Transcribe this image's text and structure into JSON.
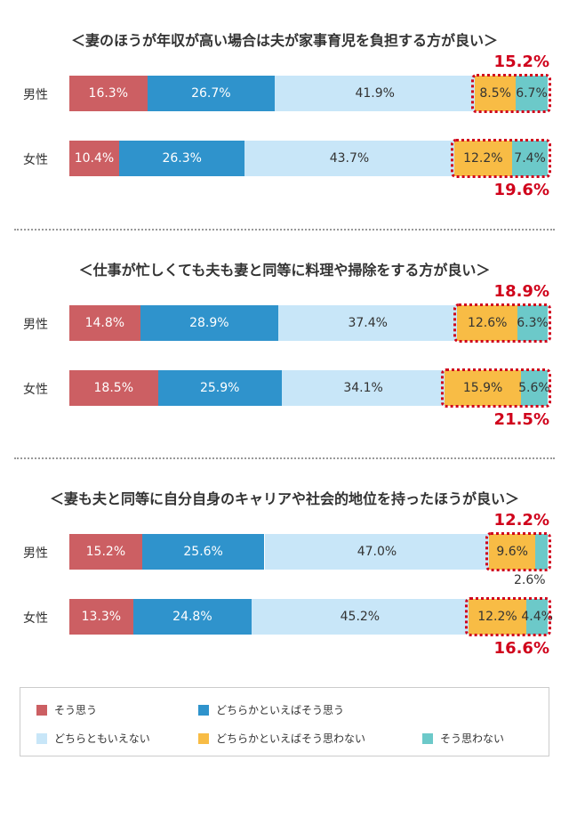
{
  "colors": {
    "agree": "#cc5f63",
    "somewhat_agree": "#2f93cc",
    "neutral": "#c8e6f8",
    "somewhat_disagree": "#f8bc45",
    "disagree": "#6cc9c9",
    "highlight": "#d0021b"
  },
  "legend": [
    {
      "key": "agree",
      "label": "そう思う"
    },
    {
      "key": "somewhat_agree",
      "label": "どちらかといえばそう思う"
    },
    {
      "key": "neutral",
      "label": "どちらともいえない"
    },
    {
      "key": "somewhat_disagree",
      "label": "どちらかといえばそう思わない"
    },
    {
      "key": "disagree",
      "label": "そう思わない"
    }
  ],
  "chart_data": [
    {
      "type": "bar",
      "orientation": "horizontal",
      "stacked": true,
      "title": "＜妻のほうが年収が高い場合は夫が家事育児を負担する方が良い＞",
      "categories": [
        "男性",
        "女性"
      ],
      "series": [
        {
          "name": "そう思う",
          "values": [
            16.3,
            10.4
          ]
        },
        {
          "name": "どちらかといえばそう思う",
          "values": [
            26.7,
            26.3
          ]
        },
        {
          "name": "どちらともいえない",
          "values": [
            41.9,
            43.7
          ]
        },
        {
          "name": "どちらかといえばそう思わない",
          "values": [
            8.5,
            12.2
          ]
        },
        {
          "name": "そう思わない",
          "values": [
            6.7,
            7.4
          ]
        }
      ],
      "labels": [
        [
          "16.3%",
          "26.7%",
          "41.9%",
          "8.5%",
          "6.7%"
        ],
        [
          "10.4%",
          "26.3%",
          "43.7%",
          "12.2%",
          "7.4%"
        ]
      ],
      "highlight_totals": [
        "15.2%",
        "19.6%"
      ]
    },
    {
      "type": "bar",
      "orientation": "horizontal",
      "stacked": true,
      "title": "＜仕事が忙しくても夫も妻と同等に料理や掃除をする方が良い＞",
      "categories": [
        "男性",
        "女性"
      ],
      "series": [
        {
          "name": "そう思う",
          "values": [
            14.8,
            18.5
          ]
        },
        {
          "name": "どちらかといえばそう思う",
          "values": [
            28.9,
            25.9
          ]
        },
        {
          "name": "どちらともいえない",
          "values": [
            37.4,
            34.1
          ]
        },
        {
          "name": "どちらかといえばそう思わない",
          "values": [
            12.6,
            15.9
          ]
        },
        {
          "name": "そう思わない",
          "values": [
            6.3,
            5.6
          ]
        }
      ],
      "labels": [
        [
          "14.8%",
          "28.9%",
          "37.4%",
          "12.6%",
          "6.3%"
        ],
        [
          "18.5%",
          "25.9%",
          "34.1%",
          "15.9%",
          "5.6%"
        ]
      ],
      "highlight_totals": [
        "18.9%",
        "21.5%"
      ]
    },
    {
      "type": "bar",
      "orientation": "horizontal",
      "stacked": true,
      "title": "＜妻も夫と同等に自分自身のキャリアや社会的地位を持ったほうが良い＞",
      "categories": [
        "男性",
        "女性"
      ],
      "series": [
        {
          "name": "そう思う",
          "values": [
            15.2,
            13.3
          ]
        },
        {
          "name": "どちらかといえばそう思う",
          "values": [
            25.6,
            24.8
          ]
        },
        {
          "name": "どちらともいえない",
          "values": [
            47.0,
            45.2
          ]
        },
        {
          "name": "どちらかといえばそう思わない",
          "values": [
            9.6,
            12.2
          ]
        },
        {
          "name": "そう思わない",
          "values": [
            2.6,
            4.4
          ]
        }
      ],
      "labels": [
        [
          "15.2%",
          "25.6%",
          "47.0%",
          "9.6%",
          "2.6%"
        ],
        [
          "13.3%",
          "24.8%",
          "45.2%",
          "12.2%",
          "4.4%"
        ]
      ],
      "highlight_totals": [
        "12.2%",
        "16.6%"
      ]
    }
  ]
}
